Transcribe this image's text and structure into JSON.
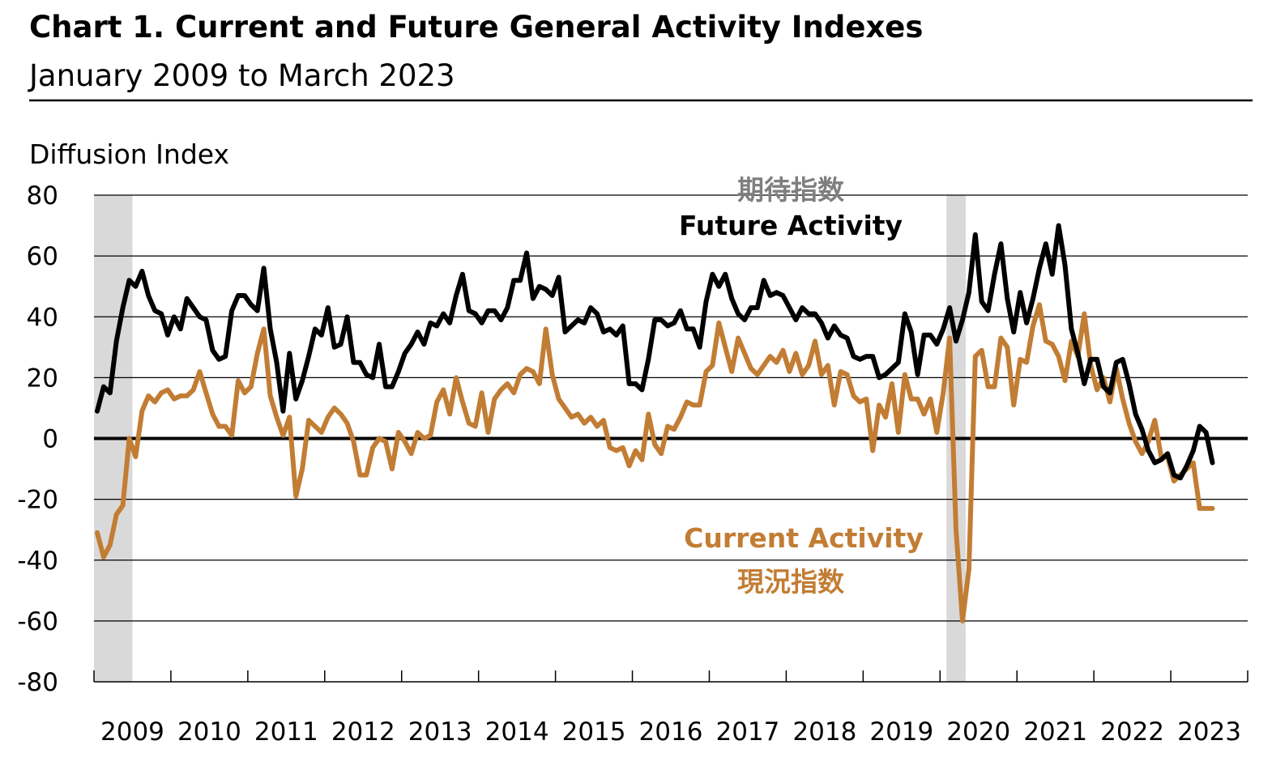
{
  "chart_data": {
    "type": "line",
    "title": "Chart 1. Current and Future General Activity Indexes",
    "subtitle": "January 2009 to March 2023",
    "ylabel": "Diffusion Index",
    "xlabel": "",
    "ylim": [
      -80,
      80
    ],
    "yticks": [
      "80",
      "60",
      "40",
      "20",
      "0",
      "-20",
      "-40",
      "-60",
      "-80"
    ],
    "xtick_labels": [
      "2009",
      "2010",
      "2011",
      "2012",
      "2013",
      "2014",
      "2015",
      "2016",
      "2017",
      "2018",
      "2019",
      "2020",
      "2021",
      "2022",
      "2023"
    ],
    "grid": true,
    "x_start": "2009-01",
    "recessions": [
      {
        "start": "2009-01",
        "end": "2009-06"
      },
      {
        "start": "2020-02",
        "end": "2020-04"
      }
    ],
    "colors": {
      "future": "#000000",
      "current": "#C27D34",
      "recession": "#D9D9D9",
      "grid": "#000000",
      "jp_future": "#7F7F7F"
    },
    "series": [
      {
        "name": "Future Activity",
        "name_jp": "期待指数",
        "values": [
          9,
          17,
          15,
          32,
          43,
          52,
          50,
          55,
          47,
          42,
          41,
          34,
          40,
          36,
          46,
          43,
          40,
          39,
          29,
          26,
          27,
          42,
          47,
          47,
          44,
          42,
          56,
          36,
          25,
          9,
          28,
          13,
          19,
          27,
          36,
          34,
          43,
          30,
          31,
          40,
          25,
          25,
          21,
          20,
          31,
          17,
          17,
          22,
          28,
          31,
          35,
          31,
          38,
          37,
          41,
          38,
          47,
          54,
          42,
          41,
          38,
          42,
          42,
          39,
          43,
          52,
          52,
          61,
          46,
          50,
          49,
          47,
          53,
          35,
          37,
          39,
          38,
          43,
          41,
          35,
          36,
          34,
          37,
          18,
          18,
          16,
          26,
          39,
          39,
          37,
          38,
          42,
          36,
          36,
          30,
          45,
          54,
          50,
          54,
          46,
          41,
          39,
          43,
          43,
          52,
          47,
          48,
          47,
          43,
          39,
          43,
          41,
          41,
          38,
          33,
          37,
          34,
          33,
          27,
          26,
          27,
          27,
          20,
          21,
          23,
          25,
          41,
          35,
          21,
          34,
          34,
          31,
          36,
          43,
          32,
          39,
          48,
          67,
          45,
          42,
          54,
          64,
          46,
          35,
          48,
          38,
          46,
          56,
          64,
          54,
          70,
          57,
          36,
          28,
          18,
          26,
          26,
          17,
          15,
          25,
          26,
          18,
          8,
          3,
          -4,
          -8,
          -7,
          -5,
          -12,
          -13,
          -9,
          -4,
          4,
          2,
          -8
        ]
      },
      {
        "name": "Current Activity",
        "name_jp": "現況指数",
        "values": [
          -31,
          -39,
          -35,
          -25,
          -22,
          0,
          -6,
          9,
          14,
          12,
          15,
          16,
          13,
          14,
          14,
          16,
          22,
          15,
          8,
          4,
          4,
          1,
          19,
          15,
          17,
          28,
          36,
          14,
          7,
          1,
          7,
          -19,
          -10,
          6,
          4,
          2,
          7,
          10,
          8,
          5,
          -1,
          -12,
          -12,
          -3,
          0,
          -1,
          -10,
          2,
          -1,
          -5,
          2,
          0,
          1,
          12,
          16,
          8,
          20,
          12,
          5,
          4,
          15,
          2,
          13,
          16,
          18,
          15,
          21,
          23,
          22,
          18,
          36,
          21,
          13,
          10,
          7,
          8,
          5,
          7,
          4,
          6,
          -3,
          -4,
          -3,
          -9,
          -4,
          -7,
          8,
          -2,
          -5,
          4,
          3,
          7,
          12,
          11,
          11,
          22,
          24,
          38,
          30,
          22,
          33,
          28,
          23,
          21,
          24,
          27,
          25,
          29,
          22,
          28,
          21,
          24,
          32,
          21,
          24,
          11,
          22,
          21,
          14,
          12,
          13,
          -4,
          11,
          7,
          18,
          2,
          21,
          13,
          13,
          8,
          13,
          2,
          15,
          33,
          -30,
          -60,
          -43,
          27,
          29,
          17,
          17,
          33,
          30,
          11,
          26,
          25,
          37,
          44,
          32,
          31,
          27,
          19,
          32,
          27,
          41,
          24,
          16,
          20,
          12,
          23,
          13,
          5,
          -1,
          -5,
          -1,
          6,
          -6,
          -6,
          -14,
          -12,
          -10,
          -8,
          -23,
          -23,
          -23
        ]
      }
    ]
  }
}
